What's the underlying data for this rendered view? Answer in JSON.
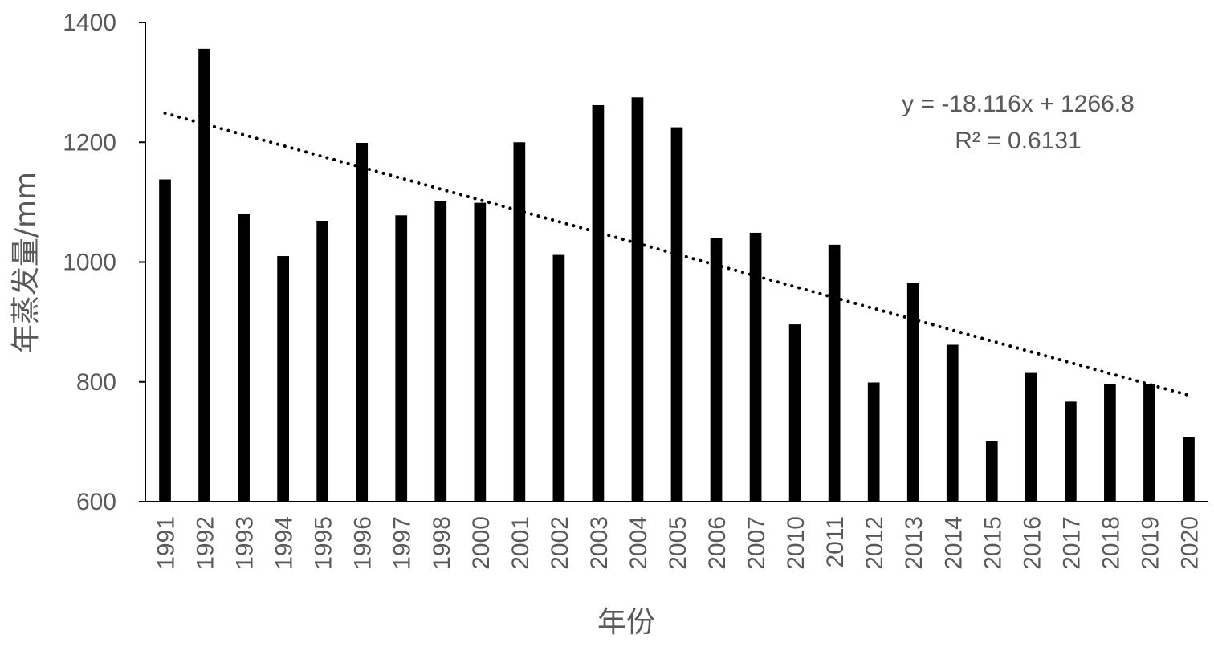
{
  "chart_data": {
    "type": "bar",
    "categories": [
      "1991",
      "1992",
      "1993",
      "1994",
      "1995",
      "1996",
      "1997",
      "1998",
      "2000",
      "2001",
      "2002",
      "2003",
      "2004",
      "2005",
      "2006",
      "2007",
      "2010",
      "2011",
      "2012",
      "2013",
      "2014",
      "2015",
      "2016",
      "2017",
      "2018",
      "2019",
      "2020"
    ],
    "values": [
      1138,
      1356,
      1081,
      1010,
      1069,
      1199,
      1078,
      1102,
      1099,
      1200,
      1012,
      1262,
      1275,
      1225,
      1040,
      1049,
      896,
      1029,
      799,
      965,
      862,
      701,
      815,
      767,
      797,
      796,
      708
    ],
    "xlabel": "年份",
    "ylabel": "年蒸发量/mm",
    "ylim": [
      600,
      1400
    ],
    "yticks": [
      "600",
      "800",
      "1000",
      "1200",
      "1400"
    ],
    "grid": false,
    "bar_color": "#000000",
    "trendline": {
      "type": "linear",
      "style": "dotted",
      "slope": -18.116,
      "intercept": 1266.8,
      "equation": "y = -18.116x + 1266.8",
      "r_squared": "R² = 0.6131"
    }
  }
}
